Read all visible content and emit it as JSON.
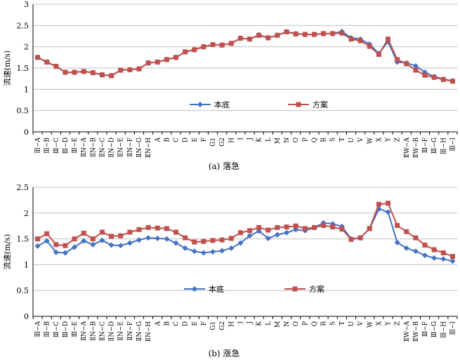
{
  "colors": {
    "base": "#4472C4",
    "scheme": "#C0504D"
  },
  "chart_data": [
    {
      "type": "line",
      "caption": "(a) 落急",
      "ylabel": "流速(m/s)",
      "ylim": [
        0,
        3
      ],
      "yticks": [
        "0",
        "0.5",
        "1",
        "1.5",
        "2",
        "2.5",
        "3"
      ],
      "grid": true,
      "legend_position": "bottom-center",
      "categories": [
        "Ⅲ−A",
        "Ⅲ−B",
        "Ⅲ−C",
        "Ⅲ−D",
        "Ⅲ−E",
        "ⅡN−A",
        "ⅡN−B",
        "ⅡN−C",
        "ⅡN−D",
        "ⅡN−E",
        "ⅡN−F",
        "ⅡN−G",
        "ⅡN−H",
        "A",
        "B",
        "C",
        "D",
        "E",
        "F",
        "G1",
        "G2",
        "H",
        "I",
        "J",
        "K",
        "L",
        "M",
        "N",
        "O",
        "P",
        "Q",
        "R",
        "S",
        "T",
        "U",
        "V",
        "W",
        "X",
        "Y",
        "Z",
        "ⅡW−A",
        "ⅡW−B",
        "Ⅲ−F",
        "Ⅲ−G",
        "Ⅲ−H",
        "Ⅲ−I"
      ],
      "series": [
        {
          "name": "本底",
          "marker": "diamond",
          "values": [
            1.75,
            1.64,
            1.54,
            1.4,
            1.4,
            1.42,
            1.39,
            1.34,
            1.32,
            1.45,
            1.46,
            1.48,
            1.62,
            1.64,
            1.7,
            1.75,
            1.88,
            1.93,
            2.0,
            2.05,
            2.04,
            2.08,
            2.2,
            2.18,
            2.28,
            2.21,
            2.27,
            2.35,
            2.31,
            2.29,
            2.29,
            2.31,
            2.31,
            2.36,
            2.21,
            2.18,
            2.06,
            1.84,
            2.12,
            1.64,
            1.62,
            1.55,
            1.4,
            1.3,
            1.24,
            1.2
          ]
        },
        {
          "name": "方案",
          "marker": "square",
          "values": [
            1.75,
            1.64,
            1.54,
            1.4,
            1.4,
            1.42,
            1.39,
            1.34,
            1.32,
            1.45,
            1.46,
            1.48,
            1.62,
            1.64,
            1.7,
            1.75,
            1.88,
            1.93,
            2.0,
            2.05,
            2.04,
            2.08,
            2.2,
            2.18,
            2.27,
            2.21,
            2.27,
            2.35,
            2.3,
            2.29,
            2.29,
            2.31,
            2.31,
            2.32,
            2.18,
            2.14,
            2.01,
            1.82,
            2.18,
            1.7,
            1.6,
            1.45,
            1.33,
            1.28,
            1.23,
            1.19
          ]
        }
      ]
    },
    {
      "type": "line",
      "caption": "(b) 涨急",
      "ylabel": "流速(m/s)",
      "ylim": [
        0,
        2.5
      ],
      "yticks": [
        "0",
        "0.5",
        "1",
        "1.5",
        "2",
        "2.5"
      ],
      "grid": true,
      "legend_position": "bottom-center",
      "categories": [
        "Ⅲ−A",
        "Ⅲ−B",
        "Ⅲ−C",
        "Ⅲ−D",
        "Ⅲ−E",
        "ⅡN−A",
        "ⅡN−B",
        "ⅡN−C",
        "ⅡN−D",
        "ⅡN−E",
        "ⅡN−F",
        "ⅡN−G",
        "ⅡN−H",
        "A",
        "B",
        "C",
        "D",
        "E",
        "F",
        "G1",
        "G2",
        "H",
        "I",
        "J",
        "K",
        "L",
        "M",
        "N",
        "O",
        "P",
        "Q",
        "R",
        "S",
        "T",
        "U",
        "V",
        "W",
        "X",
        "Y",
        "Z",
        "ⅡW−A",
        "ⅡW−B",
        "Ⅲ−F",
        "Ⅲ−G",
        "Ⅲ−H",
        "Ⅲ−I"
      ],
      "series": [
        {
          "name": "本底",
          "marker": "diamond",
          "values": [
            1.36,
            1.46,
            1.24,
            1.23,
            1.34,
            1.46,
            1.39,
            1.47,
            1.38,
            1.37,
            1.42,
            1.48,
            1.52,
            1.51,
            1.5,
            1.42,
            1.32,
            1.26,
            1.23,
            1.25,
            1.27,
            1.32,
            1.42,
            1.56,
            1.65,
            1.51,
            1.58,
            1.62,
            1.68,
            1.66,
            1.72,
            1.81,
            1.79,
            1.74,
            1.5,
            1.52,
            1.7,
            2.08,
            2.02,
            1.43,
            1.32,
            1.26,
            1.18,
            1.13,
            1.11,
            1.07
          ]
        },
        {
          "name": "方案",
          "marker": "square",
          "values": [
            1.5,
            1.6,
            1.39,
            1.37,
            1.5,
            1.61,
            1.5,
            1.63,
            1.55,
            1.56,
            1.63,
            1.68,
            1.72,
            1.71,
            1.7,
            1.63,
            1.52,
            1.44,
            1.45,
            1.47,
            1.48,
            1.51,
            1.62,
            1.66,
            1.72,
            1.67,
            1.72,
            1.73,
            1.75,
            1.7,
            1.72,
            1.76,
            1.73,
            1.69,
            1.49,
            1.52,
            1.7,
            2.17,
            2.19,
            1.76,
            1.64,
            1.52,
            1.38,
            1.29,
            1.23,
            1.16
          ]
        }
      ]
    }
  ]
}
